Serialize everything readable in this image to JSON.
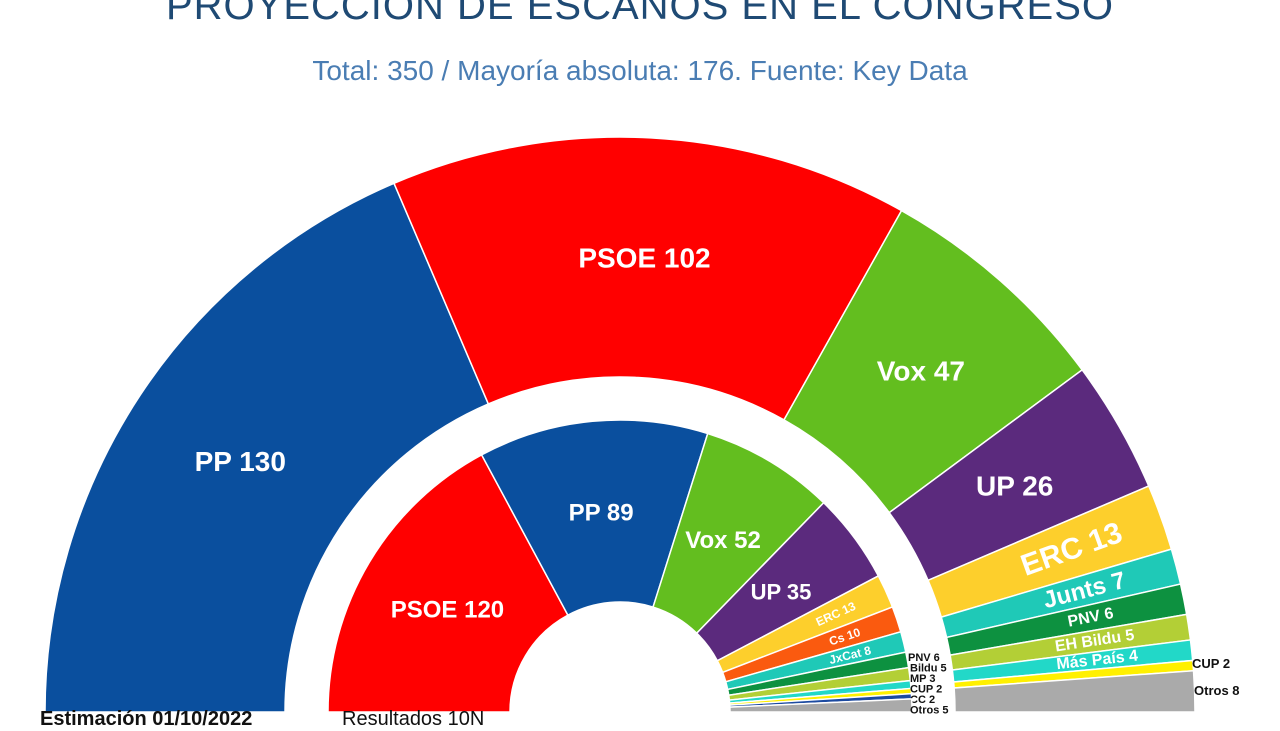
{
  "chart_data": {
    "type": "pie",
    "subtype": "hemicycle",
    "title": "PROYECCIÓN DE ESCAÑOS EN EL CONGRESO",
    "subtitle": "Total: 350 / Mayoría absoluta: 176. Fuente: Key Data",
    "total": 350,
    "majority": 176,
    "rings": [
      {
        "ring": "outer",
        "footer": "Estimación 01/10/2022",
        "slices": [
          {
            "party": "PP",
            "seats": 130,
            "color": "#0a4f9e"
          },
          {
            "party": "PSOE",
            "seats": 102,
            "color": "#ff0000"
          },
          {
            "party": "Vox",
            "seats": 47,
            "color": "#63be1f"
          },
          {
            "party": "UP",
            "seats": 26,
            "color": "#5b2a7d"
          },
          {
            "party": "ERC",
            "seats": 13,
            "color": "#fdcf2c"
          },
          {
            "party": "Junts",
            "seats": 7,
            "color": "#1fc9b7"
          },
          {
            "party": "PNV",
            "seats": 6,
            "color": "#0d9140"
          },
          {
            "party": "EH Bildu",
            "seats": 5,
            "color": "#b3cf36"
          },
          {
            "party": "Más País",
            "seats": 4,
            "color": "#22d8c8"
          },
          {
            "party": "CUP",
            "seats": 2,
            "color": "#fff000"
          },
          {
            "party": "Otros",
            "seats": 8,
            "color": "#aaaaaa"
          }
        ]
      },
      {
        "ring": "inner",
        "footer": "Resultados 10N",
        "slices": [
          {
            "party": "PSOE",
            "seats": 120,
            "color": "#ff0000"
          },
          {
            "party": "PP",
            "seats": 89,
            "color": "#0a4f9e"
          },
          {
            "party": "Vox",
            "seats": 52,
            "color": "#63be1f"
          },
          {
            "party": "UP",
            "seats": 35,
            "color": "#5b2a7d"
          },
          {
            "party": "ERC",
            "seats": 13,
            "color": "#fdcf2c"
          },
          {
            "party": "Cs",
            "seats": 10,
            "color": "#fa5a0f"
          },
          {
            "party": "JxCat",
            "seats": 8,
            "color": "#1fc9b7"
          },
          {
            "party": "PNV",
            "seats": 6,
            "color": "#0d9140"
          },
          {
            "party": "Bildu",
            "seats": 5,
            "color": "#b3cf36"
          },
          {
            "party": "MP",
            "seats": 3,
            "color": "#22d8c8"
          },
          {
            "party": "CUP",
            "seats": 2,
            "color": "#fff000"
          },
          {
            "party": "CC",
            "seats": 2,
            "color": "#1c4aa0"
          },
          {
            "party": "Otros",
            "seats": 5,
            "color": "#aaaaaa"
          }
        ]
      }
    ]
  }
}
